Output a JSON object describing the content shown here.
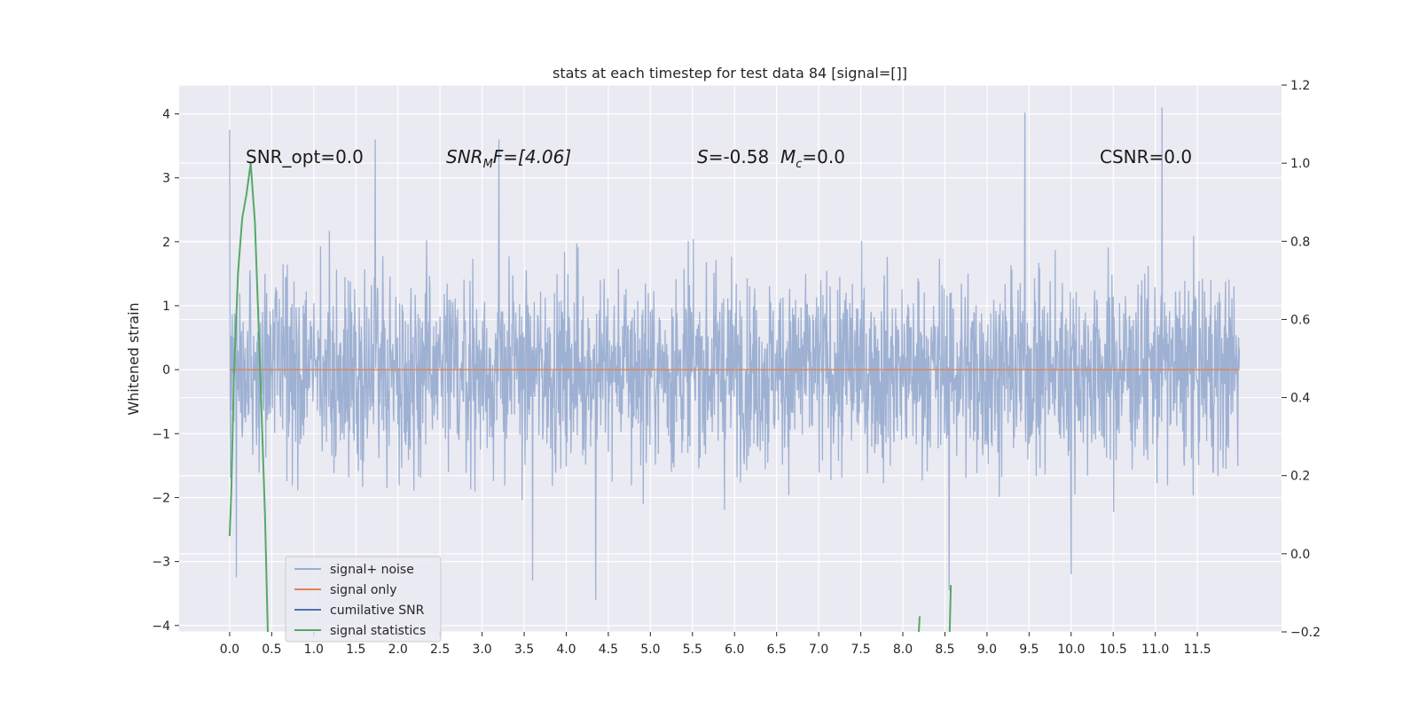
{
  "chart_data": {
    "type": "line",
    "title": "stats at each timestep for test data 84 [signal=[]]",
    "xlabel": "",
    "ylabel": "Whitened strain",
    "xlim": [
      -0.6,
      12.5
    ],
    "ylim": [
      -4.1,
      4.45
    ],
    "y2lim": [
      -0.2,
      1.2
    ],
    "grid": true,
    "legend_position": "lower-left",
    "x_ticks": [
      "0.0",
      "0.5",
      "1.0",
      "1.5",
      "2.0",
      "2.5",
      "3.0",
      "3.5",
      "4.0",
      "4.5",
      "5.0",
      "5.5",
      "6.0",
      "6.5",
      "7.0",
      "7.5",
      "8.0",
      "8.5",
      "9.0",
      "9.5",
      "10.0",
      "10.5",
      "11.0",
      "11.5"
    ],
    "y_ticks": [
      "4",
      "3",
      "2",
      "1",
      "0",
      "−1",
      "−2",
      "−3",
      "−4"
    ],
    "y2_ticks": [
      "1.2",
      "1.0",
      "0.8",
      "0.6",
      "0.4",
      "0.2",
      "0.0",
      "−0.2"
    ],
    "annotations": {
      "snr_opt": "SNR_opt=0.0",
      "snr_mf_main": "SNR",
      "snr_mf_sub": "M",
      "snr_mf_tail": "F=[4.06]",
      "s_label": "S",
      "s_value": "=-0.58",
      "mc_label": "M",
      "mc_sub": "c",
      "mc_value": "=0.0",
      "csnr": "CSNR=0.0"
    },
    "series": [
      {
        "name": "signal+ noise",
        "color": "#9aaed1",
        "description": "dense whitened-strain noise trace, x from 0.0 to 12.0 s, values between about -3.6 and 4.1",
        "x_range": [
          0.0,
          12.0
        ],
        "peaks": [
          [
            0.0,
            3.75
          ],
          [
            1.73,
            3.6
          ],
          [
            3.2,
            3.6
          ],
          [
            9.45,
            4.02
          ],
          [
            11.08,
            4.1
          ]
        ],
        "troughs": [
          [
            0.08,
            -3.25
          ],
          [
            3.6,
            -3.3
          ],
          [
            4.35,
            -3.6
          ],
          [
            8.55,
            -3.45
          ],
          [
            10.0,
            -3.2
          ]
        ]
      },
      {
        "name": "signal only",
        "color": "#dd8452",
        "x": [
          0.0,
          12.0
        ],
        "y": [
          0.0,
          0.0
        ]
      },
      {
        "name": "cumilative SNR",
        "color": "#4c72b0",
        "x": [],
        "y": []
      },
      {
        "name": "signal statistics",
        "color": "#55a868",
        "axis": "right",
        "x": [
          0.0,
          0.02,
          0.05,
          0.1,
          0.15,
          0.2,
          0.25,
          0.3,
          0.35,
          0.42,
          0.47,
          8.15,
          8.2,
          8.54,
          8.57
        ],
        "y": [
          0.045,
          0.16,
          0.45,
          0.72,
          0.86,
          0.92,
          1.0,
          0.85,
          0.55,
          0.1,
          -0.2,
          -0.2,
          -0.16,
          -0.2,
          -0.08
        ]
      }
    ],
    "legend": [
      "signal+ noise",
      "signal only",
      "cumilative SNR",
      "signal statistics"
    ]
  }
}
